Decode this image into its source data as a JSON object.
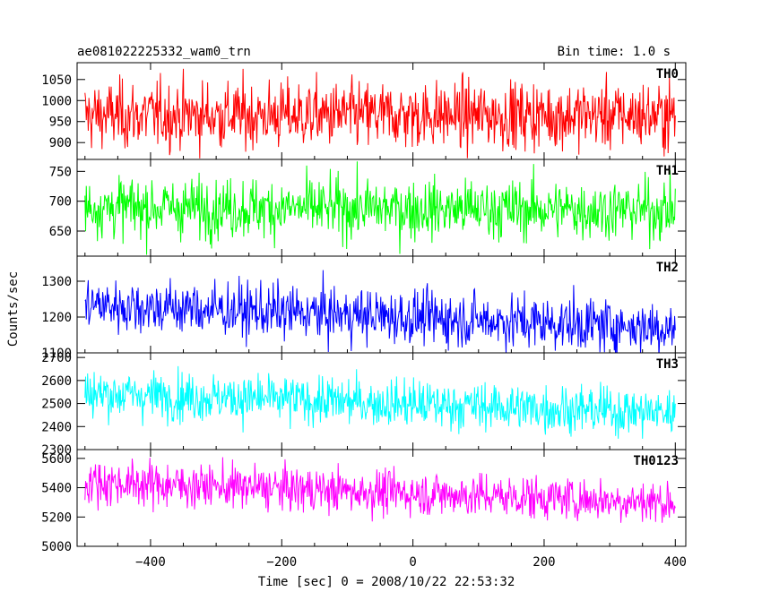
{
  "header": {
    "title": "ae081022225332_wam0_trn",
    "bin_time": "Bin time: 1.0 s"
  },
  "chart_data": {
    "type": "line",
    "title": "ae081022225332_wam0_trn",
    "subtitle": "Bin time: 1.0 s",
    "xlabel": "Time [sec] 0 = 2008/10/22 22:53:32",
    "ylabel": "Counts/sec",
    "xlim": [
      -512,
      416
    ],
    "x_ticks": [
      -400,
      -200,
      0,
      200,
      400
    ],
    "x_tick_labels": [
      "−400",
      "−200",
      "0",
      "200",
      "400"
    ],
    "x_range": [
      -500,
      400
    ],
    "bin_time_s": 1.0,
    "grid": false,
    "panels": [
      {
        "name": "TH0",
        "color": "#ff0000",
        "ylim": [
          860,
          1090
        ],
        "ticks": [
          900,
          950,
          1000,
          1050
        ],
        "level_start": 965,
        "level_end": 965,
        "spread": 40
      },
      {
        "name": "TH1",
        "color": "#00ff00",
        "ylim": [
          608,
          770
        ],
        "ticks": [
          650,
          700,
          750
        ],
        "level_start": 690,
        "level_end": 685,
        "spread": 25
      },
      {
        "name": "TH2",
        "color": "#0000ff",
        "ylim": [
          1100,
          1370
        ],
        "ticks": [
          1100,
          1200,
          1300
        ],
        "level_start": 1235,
        "level_end": 1170,
        "spread": 38
      },
      {
        "name": "TH3",
        "color": "#00ffff",
        "ylim": [
          2300,
          2720
        ],
        "ticks": [
          2300,
          2400,
          2500,
          2600,
          2700
        ],
        "level_start": 2545,
        "level_end": 2460,
        "spread": 52
      },
      {
        "name": "TH0123",
        "color": "#ff00ff",
        "ylim": [
          5000,
          5660
        ],
        "ticks": [
          5000,
          5200,
          5400,
          5600
        ],
        "level_start": 5440,
        "level_end": 5300,
        "spread": 75
      }
    ]
  }
}
